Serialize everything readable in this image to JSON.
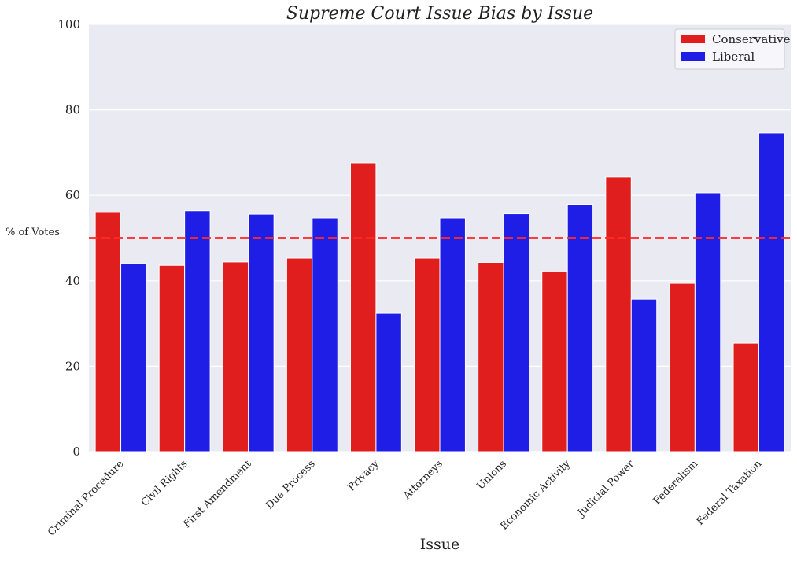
{
  "chart_data": {
    "type": "bar",
    "title": "Supreme Court Issue Bias by Issue",
    "xlabel": "Issue",
    "ylabel": "% of Votes",
    "ylim": [
      0,
      100
    ],
    "yticks": [
      "0",
      "20",
      "40",
      "60",
      "80",
      "100"
    ],
    "grid": true,
    "legend_position": "top-right",
    "reference_line": {
      "value": 50,
      "style": "dashed",
      "color": "#ff2a2a"
    },
    "categories": [
      "Criminal Procedure",
      "Civil Rights",
      "First Amendment",
      "Due Process",
      "Privacy",
      "Attorneys",
      "Unions",
      "Economic Activity",
      "Judicial Power",
      "Federalism",
      "Federal Taxation"
    ],
    "series": [
      {
        "name": "Conservative",
        "color": "#e01e1e",
        "values": [
          56.0,
          43.6,
          44.4,
          45.3,
          67.6,
          45.3,
          44.3,
          42.1,
          64.3,
          39.4,
          25.4
        ]
      },
      {
        "name": "Liberal",
        "color": "#1e1ee6",
        "values": [
          44.0,
          56.4,
          55.6,
          54.7,
          32.4,
          54.7,
          55.7,
          57.9,
          35.7,
          60.6,
          74.6
        ]
      }
    ]
  }
}
